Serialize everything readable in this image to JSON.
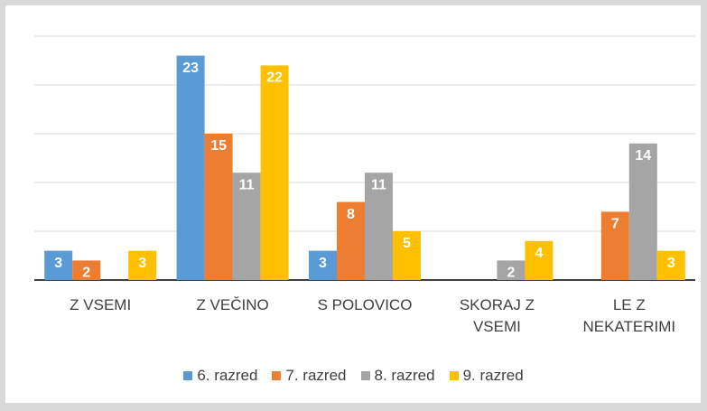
{
  "chart_data": {
    "type": "bar",
    "categories": [
      "Z VSEMI",
      "Z VEČINO",
      "S POLOVICO",
      "SKORAJ Z VSEMI",
      "LE Z NEKATERIMI"
    ],
    "series": [
      {
        "name": "6. razred",
        "color": "#5b9bd5",
        "values": [
          3,
          23,
          3,
          null,
          null
        ]
      },
      {
        "name": "7. razred",
        "color": "#ed7d31",
        "values": [
          2,
          15,
          8,
          null,
          7
        ]
      },
      {
        "name": "8. razred",
        "color": "#a5a5a5",
        "values": [
          0,
          11,
          11,
          2,
          14
        ]
      },
      {
        "name": "9. razred",
        "color": "#ffc000",
        "values": [
          3,
          22,
          5,
          4,
          3
        ]
      }
    ],
    "ylim": [
      0,
      25
    ],
    "yticks": [
      0,
      5,
      10,
      15,
      20,
      25
    ],
    "grid": true,
    "legend": "bottom"
  }
}
